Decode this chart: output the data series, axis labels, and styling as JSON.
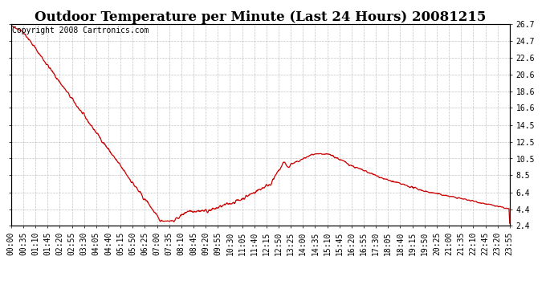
{
  "title": "Outdoor Temperature per Minute (Last 24 Hours) 20081215",
  "copyright_text": "Copyright 2008 Cartronics.com",
  "line_color": "#cc0000",
  "bg_color": "#ffffff",
  "plot_bg_color": "#ffffff",
  "grid_color": "#aaaaaa",
  "ylim": [
    2.4,
    26.7
  ],
  "yticks": [
    2.4,
    4.4,
    6.4,
    8.5,
    10.5,
    12.5,
    14.5,
    16.6,
    18.6,
    20.6,
    22.6,
    24.7,
    26.7
  ],
  "xtick_labels": [
    "00:00",
    "00:35",
    "01:10",
    "01:45",
    "02:20",
    "02:55",
    "03:30",
    "04:05",
    "04:40",
    "05:15",
    "05:50",
    "06:25",
    "07:00",
    "07:35",
    "08:10",
    "08:45",
    "09:20",
    "09:55",
    "10:30",
    "11:05",
    "11:40",
    "12:15",
    "12:50",
    "13:25",
    "14:00",
    "14:35",
    "15:10",
    "15:45",
    "16:20",
    "16:55",
    "17:30",
    "18:05",
    "18:40",
    "19:15",
    "19:50",
    "20:25",
    "21:00",
    "21:35",
    "22:10",
    "22:45",
    "23:20",
    "23:55"
  ],
  "title_fontsize": 12,
  "copyright_fontsize": 7,
  "tick_fontsize": 7,
  "line_width": 0.9,
  "figsize": [
    6.9,
    3.75
  ],
  "dpi": 100
}
